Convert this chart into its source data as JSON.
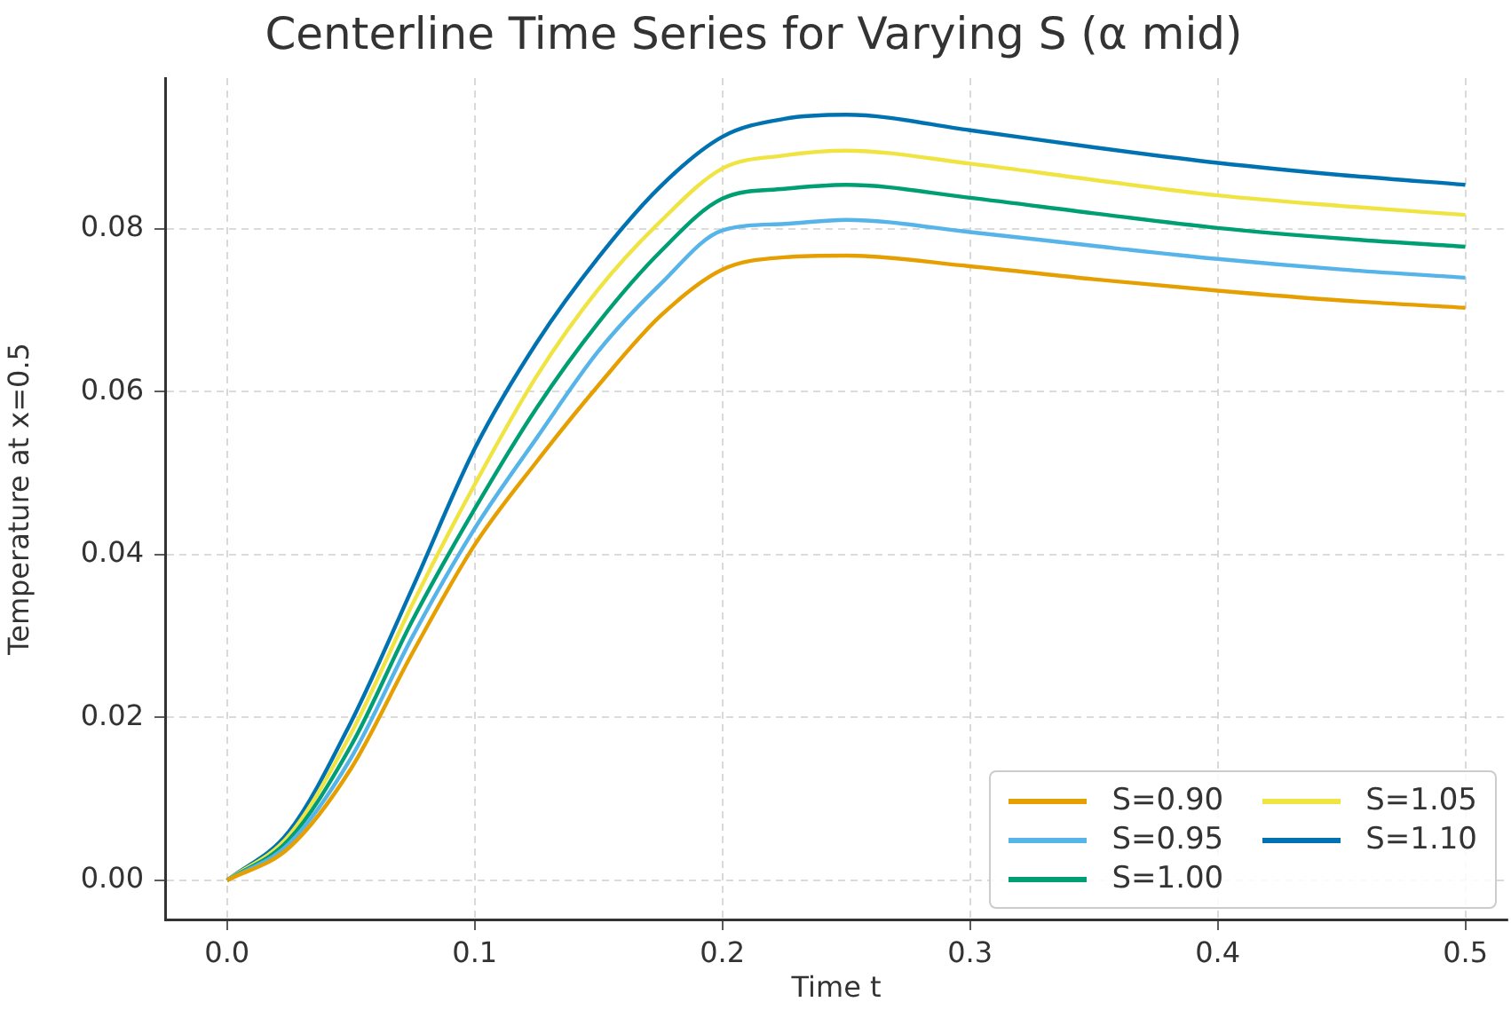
{
  "chart_data": {
    "type": "line",
    "title": "Centerline Time Series for Varying S (α mid)",
    "xlabel": "Time t",
    "ylabel": "Temperature at x=0.5",
    "x": [
      0,
      0.025,
      0.05,
      0.075,
      0.1,
      0.125,
      0.15,
      0.175,
      0.2,
      0.225,
      0.25,
      0.3,
      0.35,
      0.4,
      0.45,
      0.5
    ],
    "series": [
      {
        "name": "S=0.90",
        "color": "#e69f00",
        "values": [
          0,
          0.004,
          0.0137,
          0.028,
          0.0412,
          0.0514,
          0.0608,
          0.0693,
          0.075,
          0.0765,
          0.0767,
          0.0754,
          0.0738,
          0.0724,
          0.0712,
          0.0703
        ]
      },
      {
        "name": "S=0.95",
        "color": "#56b4e9",
        "values": [
          0,
          0.0045,
          0.015,
          0.03,
          0.0432,
          0.0543,
          0.065,
          0.0732,
          0.0798,
          0.0806,
          0.0811,
          0.0796,
          0.0779,
          0.0763,
          0.075,
          0.074
        ]
      },
      {
        "name": "S=1.00",
        "color": "#009e73",
        "values": [
          0,
          0.005,
          0.0165,
          0.032,
          0.0456,
          0.058,
          0.0685,
          0.0772,
          0.0837,
          0.0849,
          0.0854,
          0.0838,
          0.0819,
          0.0801,
          0.0788,
          0.0778
        ]
      },
      {
        "name": "S=1.05",
        "color": "#f0e442",
        "values": [
          0,
          0.0055,
          0.018,
          0.034,
          0.0486,
          0.0619,
          0.0726,
          0.0809,
          0.0874,
          0.089,
          0.0896,
          0.088,
          0.086,
          0.0841,
          0.0828,
          0.0817
        ]
      },
      {
        "name": "S=1.10",
        "color": "#0072b2",
        "values": [
          0,
          0.006,
          0.0194,
          0.036,
          0.053,
          0.066,
          0.0765,
          0.0852,
          0.0913,
          0.0935,
          0.094,
          0.0921,
          0.09,
          0.0881,
          0.0866,
          0.0854
        ]
      }
    ],
    "xlim": [
      -0.025,
      0.517
    ],
    "ylim": [
      -0.0048,
      0.0985
    ],
    "xticks": [
      {
        "value": 0,
        "label": "0.0"
      },
      {
        "value": 0.1,
        "label": "0.1"
      },
      {
        "value": 0.2,
        "label": "0.2"
      },
      {
        "value": 0.3,
        "label": "0.3"
      },
      {
        "value": 0.4,
        "label": "0.4"
      },
      {
        "value": 0.5,
        "label": "0.5"
      }
    ],
    "yticks": [
      {
        "value": 0,
        "label": "0.00"
      },
      {
        "value": 0.02,
        "label": "0.02"
      },
      {
        "value": 0.04,
        "label": "0.04"
      },
      {
        "value": 0.06,
        "label": "0.06"
      },
      {
        "value": 0.08,
        "label": "0.08"
      }
    ],
    "grid": true,
    "legend": "bottom right",
    "marker": "none",
    "line_style": "solid"
  }
}
